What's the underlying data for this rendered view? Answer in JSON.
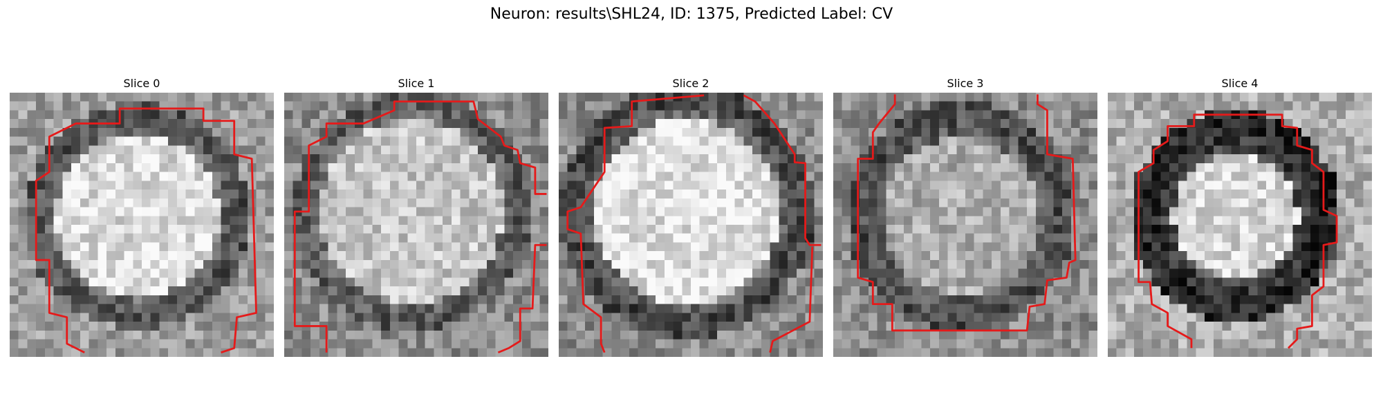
{
  "figure": {
    "title": "Neuron: results\\SHL24, ID: 1375, Predicted Label: CV"
  },
  "slices": [
    {
      "title": "Slice 0"
    },
    {
      "title": "Slice 1"
    },
    {
      "title": "Slice 2"
    },
    {
      "title": "Slice 3"
    },
    {
      "title": "Slice 4"
    }
  ],
  "colors": {
    "contour": "#e51a1a",
    "background": "#ffffff"
  }
}
